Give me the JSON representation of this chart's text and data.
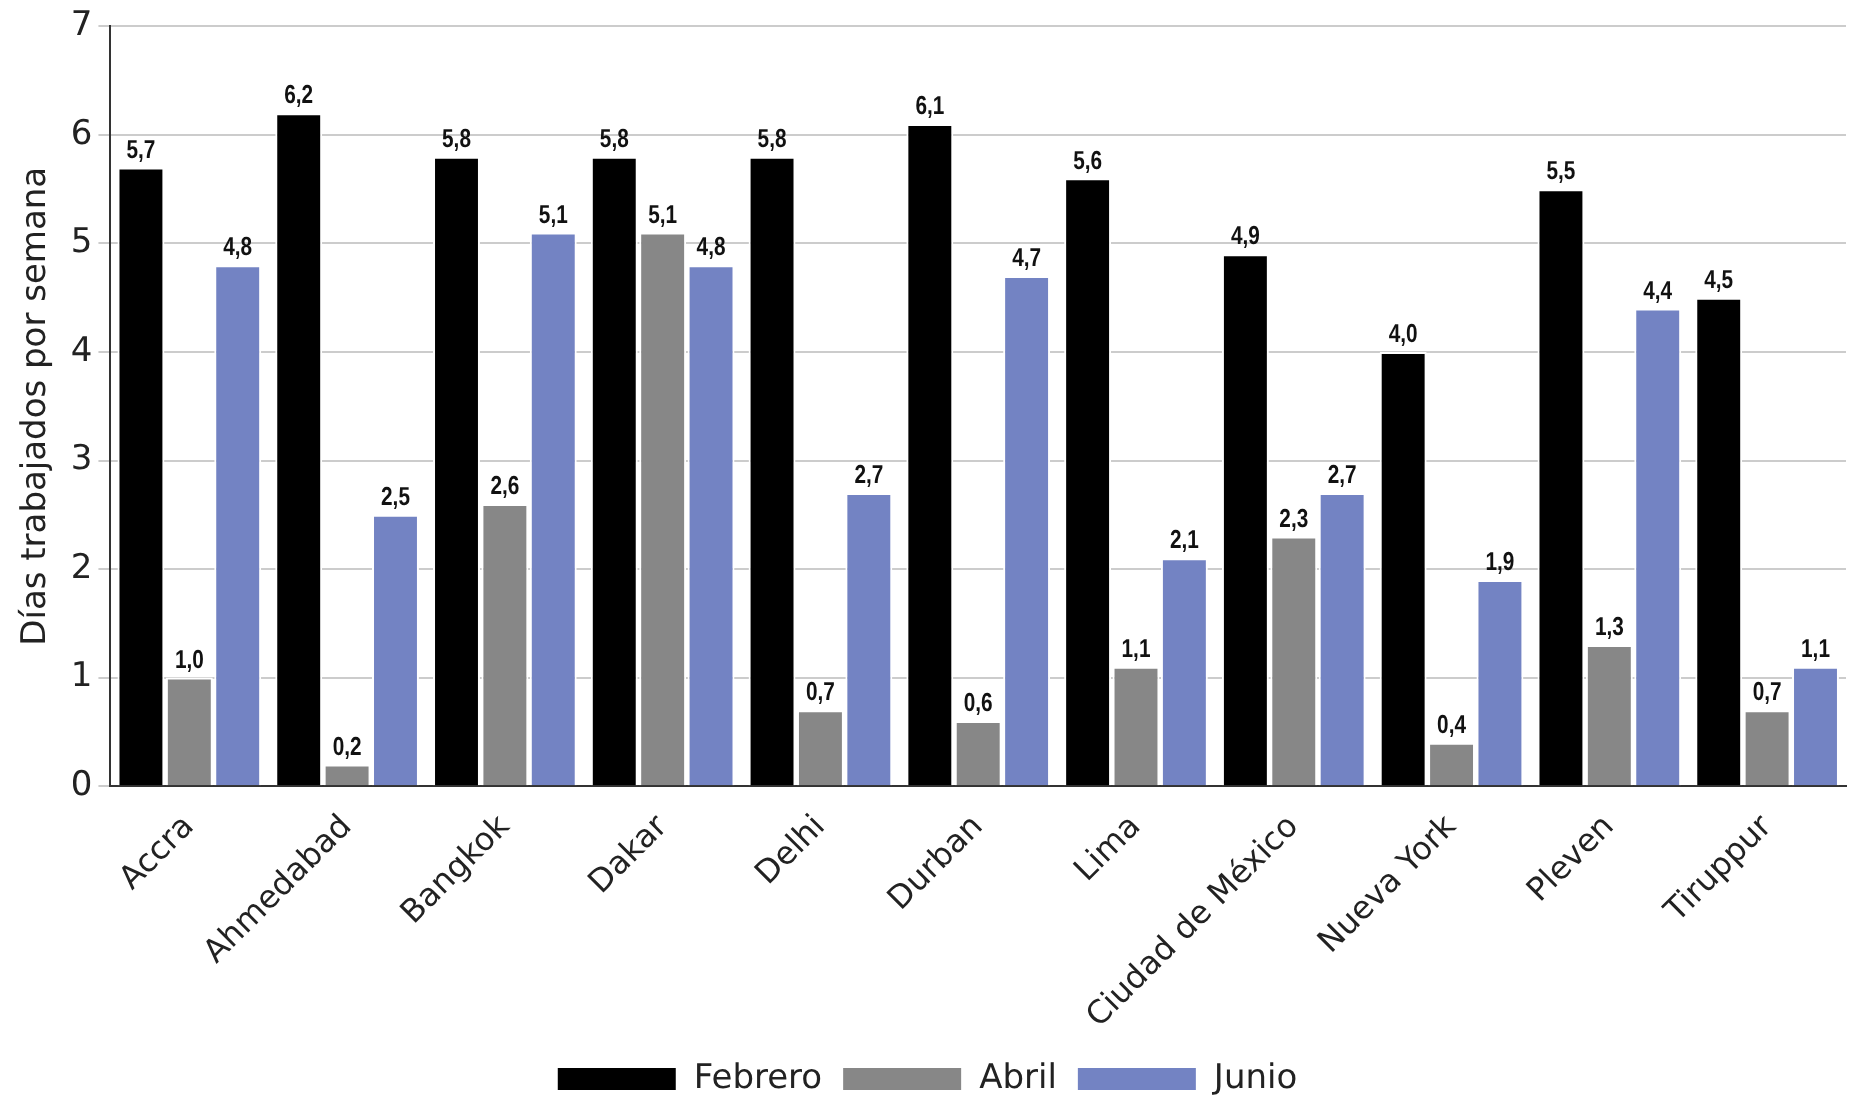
{
  "chart_data": {
    "type": "bar",
    "ylabel": "Días trabajados por semana",
    "categories": [
      "Accra",
      "Ahmedabad",
      "Bangkok",
      "Dakar",
      "Delhi",
      "Durban",
      "Lima",
      "Ciudad de México",
      "Nueva York",
      "Pleven",
      "Tiruppur"
    ],
    "series": [
      {
        "name": "Febrero",
        "color": "#000000",
        "values": [
          5.7,
          6.2,
          5.8,
          5.8,
          5.8,
          6.1,
          5.6,
          4.9,
          4.0,
          5.5,
          4.5
        ],
        "value_labels": [
          "5,7",
          "6,2",
          "5,8",
          "5,8",
          "5,8",
          "6,1",
          "5,6",
          "4,9",
          "4,0",
          "5,5",
          "4,5"
        ]
      },
      {
        "name": "Abril",
        "color": "#878787",
        "values": [
          1.0,
          0.2,
          2.6,
          5.1,
          0.7,
          0.6,
          1.1,
          2.3,
          0.4,
          1.3,
          0.7
        ],
        "value_labels": [
          "1,0",
          "0,2",
          "2,6",
          "5,1",
          "0,7",
          "0,6",
          "1,1",
          "2,3",
          "0,4",
          "1,3",
          "0,7"
        ]
      },
      {
        "name": "Junio",
        "color": "#7383c3",
        "values": [
          4.8,
          2.5,
          5.1,
          4.8,
          2.7,
          4.7,
          2.1,
          2.7,
          1.9,
          4.4,
          1.1
        ],
        "value_labels": [
          "4,8",
          "2,5",
          "5,1",
          "4,8",
          "2,7",
          "4,7",
          "2,1",
          "2,7",
          "1,9",
          "4,4",
          "1,1"
        ]
      }
    ],
    "ylim": [
      0,
      7
    ],
    "yticks": [
      0,
      1,
      2,
      3,
      4,
      5,
      6,
      7
    ],
    "grid": "y",
    "legend": "bottom"
  }
}
